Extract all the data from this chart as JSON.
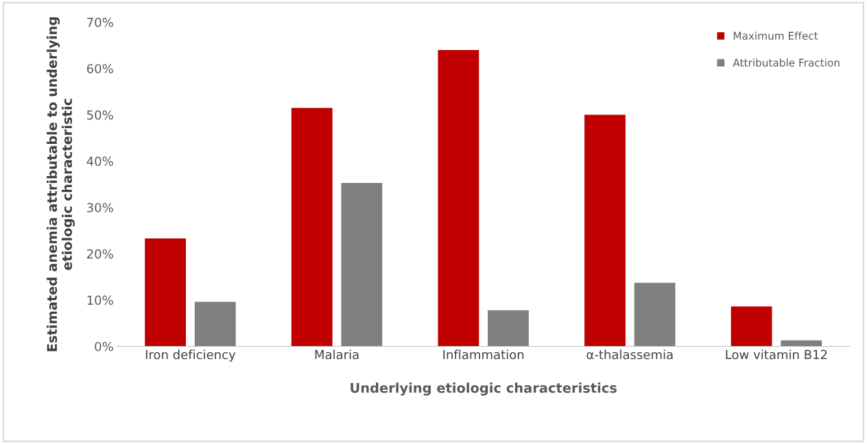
{
  "chart_data": {
    "type": "bar",
    "xlabel": "Underlying etiologic characteristics",
    "ylabel": "Estimated anemia attributable to underlying\netiologic characteristic",
    "categories": [
      "Iron deficiency",
      "Malaria",
      "Inflammation",
      "α-thalassemia",
      "Low vitamin B12"
    ],
    "series": [
      {
        "name": "Maximum Effect",
        "color": "#c00000",
        "values": [
          23.3,
          51.5,
          64,
          50,
          8.6
        ]
      },
      {
        "name": "Attributable Fraction",
        "color": "#7f7f7f",
        "values": [
          9.6,
          35.3,
          7.8,
          13.7,
          1.3
        ]
      }
    ],
    "ylim": [
      0,
      70
    ],
    "yticks": [
      {
        "value": 0,
        "label": "0%"
      },
      {
        "value": 10,
        "label": "10%"
      },
      {
        "value": 20,
        "label": "20%"
      },
      {
        "value": 30,
        "label": "30%"
      },
      {
        "value": 40,
        "label": "40%"
      },
      {
        "value": 50,
        "label": "50%"
      },
      {
        "value": 60,
        "label": "60%"
      },
      {
        "value": 70,
        "label": "70%"
      }
    ],
    "grid": false,
    "legend": "top right"
  }
}
